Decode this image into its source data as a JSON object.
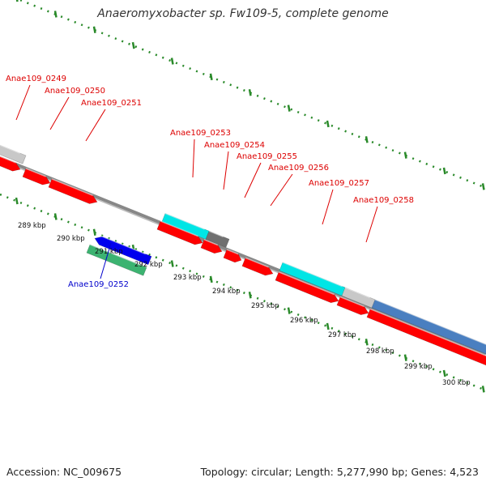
{
  "title": "Anaeromyxobacter sp. Fw109-5, complete genome",
  "footer": {
    "accession": "Accession: NC_009675",
    "summary": "Topology: circular; Length: 5,277,990 bp; Genes: 4,523"
  },
  "colors": {
    "forward_cds": "#ff0000",
    "reverse_cds": "#0000ee",
    "trna_like": "#00e5e5",
    "rrna_like": "#3cb371",
    "pseudo": "#c8c8c8",
    "other": "#707070",
    "long_feature": "#4a7fc0",
    "label_forward": "#dd0000",
    "label_reverse": "#0000cc",
    "ruler": "#2a8a2a",
    "backbone": "#888888"
  },
  "gene_labels_forward": [
    "Anae109_0249",
    "Anae109_0250",
    "Anae109_0251",
    "Anae109_0253",
    "Anae109_0254",
    "Anae109_0255",
    "Anae109_0256",
    "Anae109_0257",
    "Anae109_0258"
  ],
  "gene_labels_reverse": [
    "Anae109_0252"
  ],
  "position_ticks": [
    "289 kbp",
    "290 kbp",
    "291 kbp",
    "292 kbp",
    "293 kbp",
    "294 kbp",
    "295 kbp",
    "296 kbp",
    "297 kbp",
    "298 kbp",
    "299 kbp",
    "300 kbp"
  ]
}
